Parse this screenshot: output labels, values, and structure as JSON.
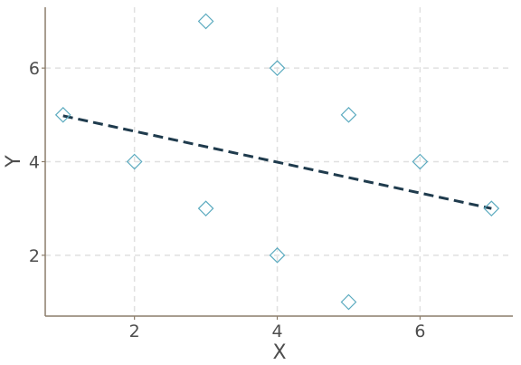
{
  "chart_data": {
    "type": "scatter",
    "xlabel": "X",
    "ylabel": "Y",
    "xlim": [
      0.75,
      7.3
    ],
    "ylim": [
      0.7,
      7.3
    ],
    "x_ticks": [
      2,
      4,
      6
    ],
    "y_ticks": [
      2,
      4,
      6
    ],
    "grid": true,
    "points": [
      {
        "x": 1,
        "y": 5
      },
      {
        "x": 2,
        "y": 4
      },
      {
        "x": 3,
        "y": 7
      },
      {
        "x": 3,
        "y": 3
      },
      {
        "x": 4,
        "y": 6
      },
      {
        "x": 4,
        "y": 2
      },
      {
        "x": 5,
        "y": 5
      },
      {
        "x": 5,
        "y": 1
      },
      {
        "x": 6,
        "y": 4
      },
      {
        "x": 7,
        "y": 3
      }
    ],
    "trend_line": {
      "x": [
        1,
        7
      ],
      "y": [
        4.98,
        3.0
      ],
      "style": "dashed"
    },
    "colors": {
      "points": "#5aaabf",
      "trend_line": "#1f3b4d",
      "axis": "#8b7d6b",
      "grid": "#e0e0e0"
    }
  }
}
